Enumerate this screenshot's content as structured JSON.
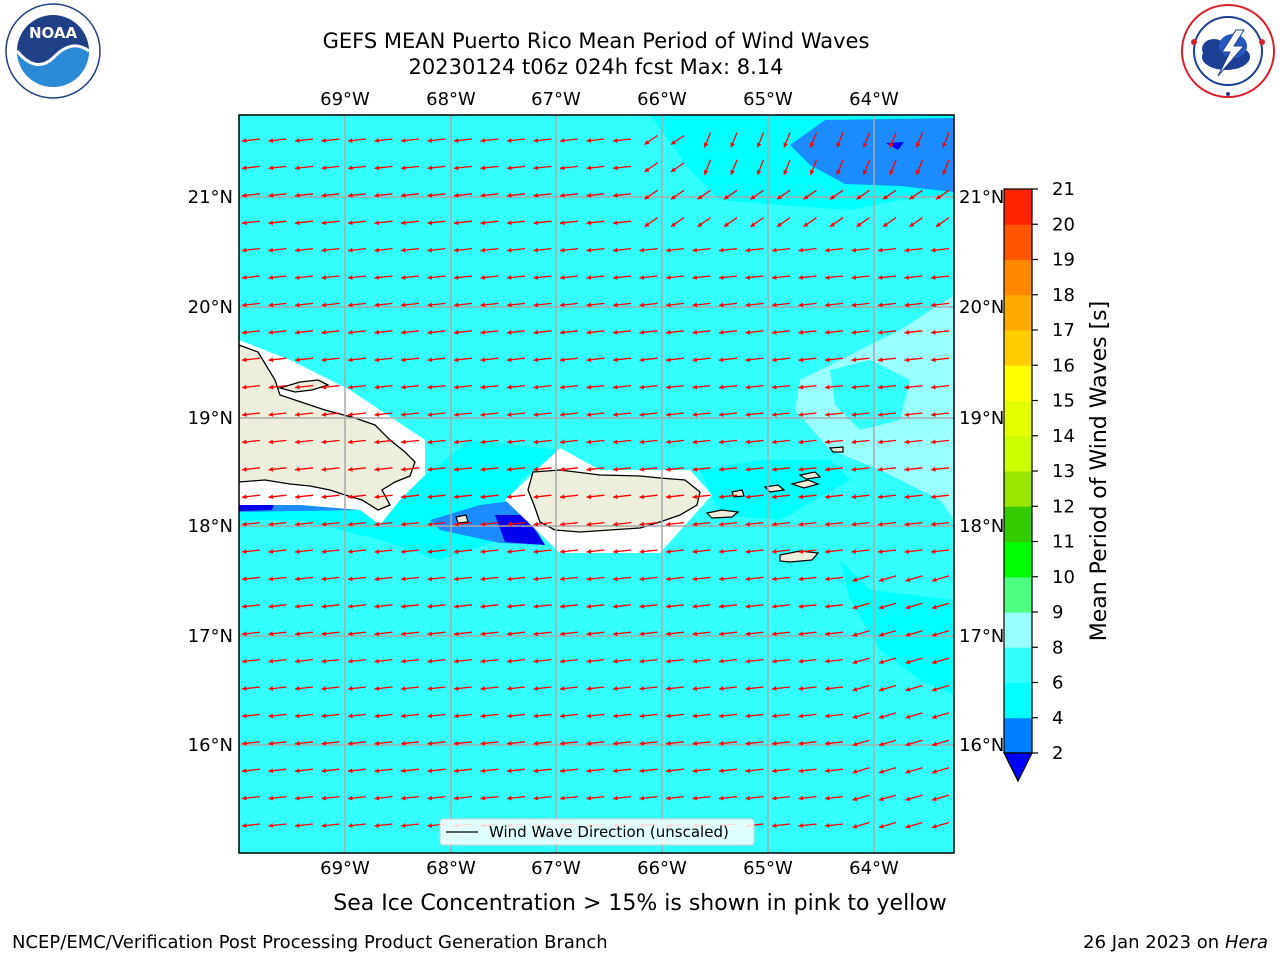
{
  "header": {
    "title_line1": "GEFS MEAN Puerto Rico Mean Period of Wind Waves",
    "title_line2": "20230124 t06z 024h fcst   Max: 8.14"
  },
  "logos": {
    "left": {
      "name": "NOAA",
      "ring_text": "NATIONAL OCEANIC AND ATMOSPHERIC ADMINISTRATION",
      "bottom_text": "U.S. DEPARTMENT OF COMMERCE"
    },
    "right": {
      "name": "NATIONAL WEATHER SERVICE"
    }
  },
  "map": {
    "lon_labels": [
      "69°W",
      "68°W",
      "67°W",
      "66°W",
      "65°W",
      "64°W"
    ],
    "lat_labels": [
      "21°N",
      "20°N",
      "19°N",
      "18°N",
      "17°N",
      "16°N"
    ],
    "legend_label": "Wind Wave Direction (unscaled)",
    "colors": {
      "ocean": "#33ffff",
      "land": "#eeeedd",
      "arrow": "#ff0000",
      "light": "#99ffff",
      "blue": "#1a8cff",
      "deep_blue": "#0000ee"
    }
  },
  "colorbar": {
    "label": "Mean Period of Wind Waves [s]",
    "ticks": [
      "2",
      "4",
      "6",
      "8",
      "9",
      "10",
      "11",
      "12",
      "13",
      "14",
      "15",
      "16",
      "17",
      "18",
      "19",
      "20",
      "21"
    ],
    "colors": [
      "#0000ff",
      "#0080ff",
      "#00ffff",
      "#33ffff",
      "#99ffff",
      "#4cff80",
      "#00ff00",
      "#33cc00",
      "#99e600",
      "#ccff00",
      "#e6ff00",
      "#ffff00",
      "#ffcc00",
      "#ffaa00",
      "#ff8800",
      "#ff5500",
      "#ff2200",
      "#ff0000"
    ]
  },
  "caption": "Sea Ice Concentration > 15% is shown in pink to yellow",
  "footer": {
    "left": "NCEP/EMC/Verification Post Processing Product Generation Branch",
    "date": "26 Jan 2023 on ",
    "machine": "Hera"
  }
}
